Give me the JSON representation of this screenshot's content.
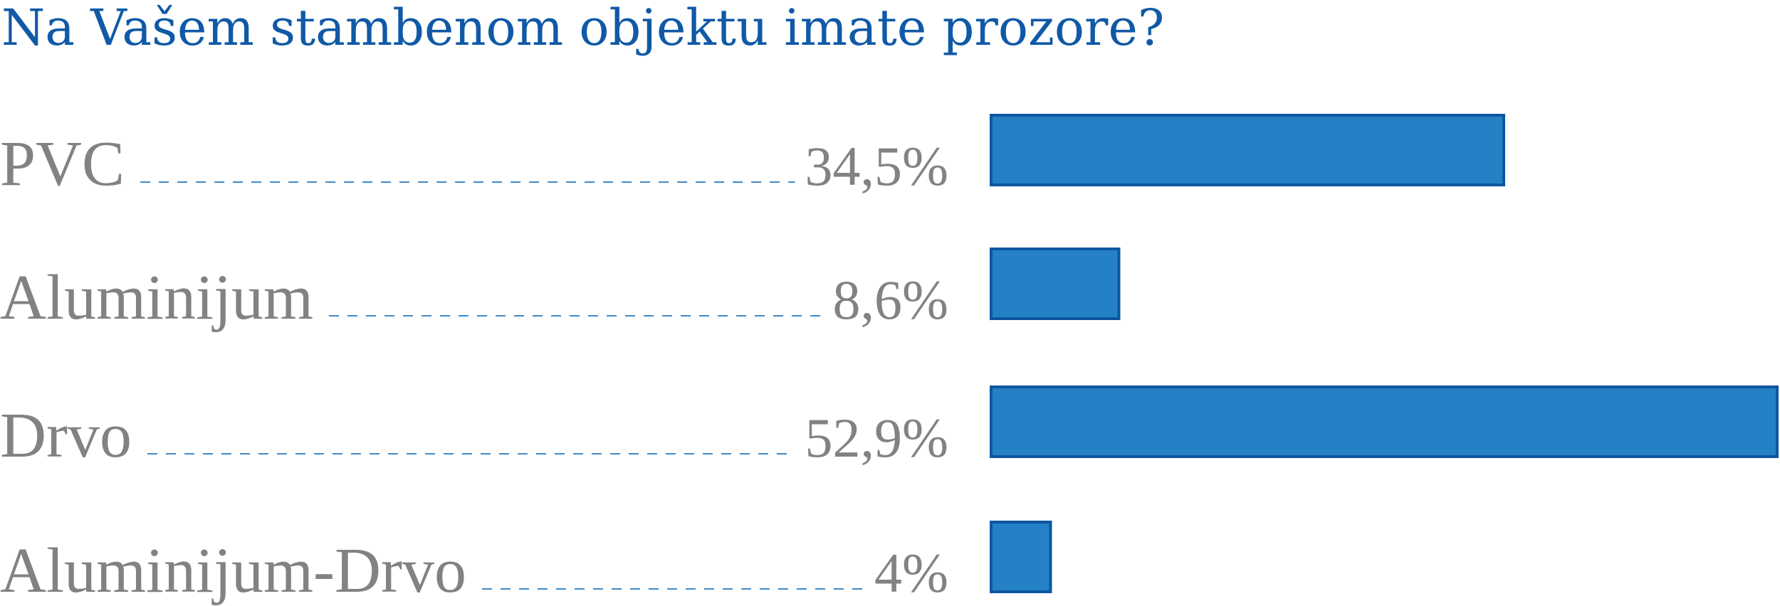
{
  "chart_data": {
    "type": "bar",
    "orientation": "horizontal",
    "title": "Na Vašem stambenom objektu imate prozore?",
    "categories": [
      "PVC",
      "Aluminijum",
      "Drvo",
      "Aluminijum-Drvo"
    ],
    "values": [
      34.5,
      8.6,
      52.9,
      4
    ],
    "value_labels": [
      "34,5%",
      "8,6%",
      "52,9%",
      "4%"
    ],
    "unit": "%",
    "xlim": [
      0,
      52.9
    ],
    "grid": false,
    "legend": "none"
  },
  "colors": {
    "title": "#1059a6",
    "label": "#828282",
    "bar_fill": "#2481c6",
    "bar_stroke": "#0d56a0",
    "leader": "#3f8ac8"
  }
}
